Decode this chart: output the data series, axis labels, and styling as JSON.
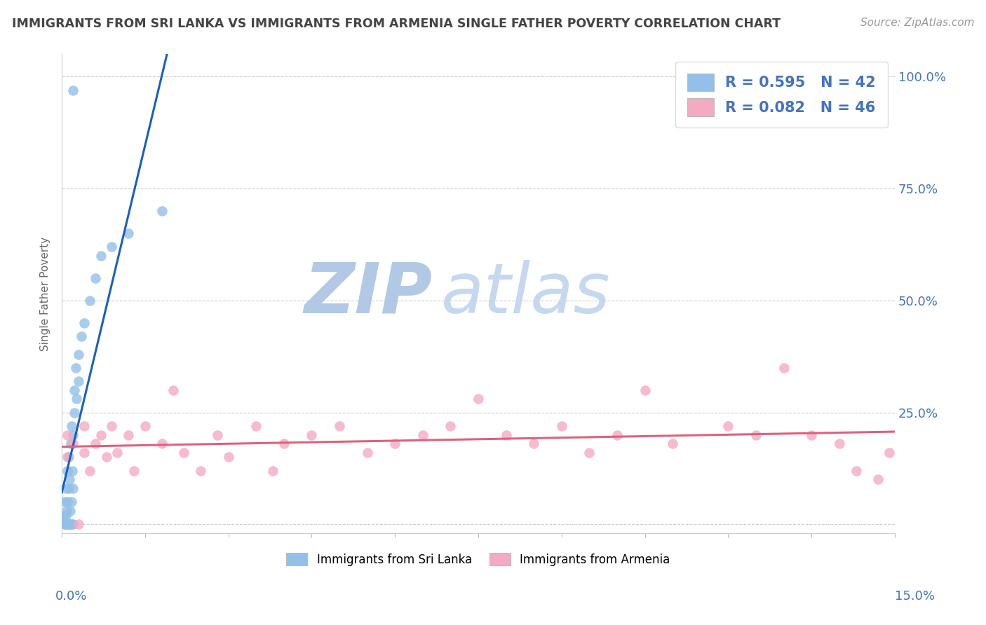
{
  "title": "IMMIGRANTS FROM SRI LANKA VS IMMIGRANTS FROM ARMENIA SINGLE FATHER POVERTY CORRELATION CHART",
  "source": "Source: ZipAtlas.com",
  "ylabel": "Single Father Poverty",
  "xlim": [
    0.0,
    0.15
  ],
  "ylim": [
    -0.02,
    1.05
  ],
  "yticks": [
    0.0,
    0.25,
    0.5,
    0.75,
    1.0
  ],
  "ytick_labels_right": [
    "",
    "25.0%",
    "50.0%",
    "75.0%",
    "100.0%"
  ],
  "xtick_label_left": "0.0%",
  "xtick_label_right": "15.0%",
  "legend1_text": "R = 0.595   N = 42",
  "legend2_text": "R = 0.082   N = 46",
  "color_srilanka": "#92c0e8",
  "color_armenia": "#f4aac0",
  "color_trend1": "#1a5fbd",
  "color_trend2": "#e0607a",
  "color_dash": "#aaccee",
  "color_axis_blue": "#4472c4",
  "color_title": "#444444",
  "color_source": "#999999",
  "color_grid": "#cccccc",
  "bg_color": "#ffffff",
  "label_srilanka": "Immigrants from Sri Lanka",
  "label_armenia": "Immigrants from Armenia",
  "sl_x": [
    0.0003,
    0.0004,
    0.0005,
    0.0005,
    0.0006,
    0.0007,
    0.0007,
    0.0008,
    0.0009,
    0.001,
    0.001,
    0.001,
    0.0012,
    0.0012,
    0.0013,
    0.0013,
    0.0014,
    0.0015,
    0.0015,
    0.0016,
    0.0017,
    0.0018,
    0.0018,
    0.0019,
    0.002,
    0.002,
    0.002,
    0.0022,
    0.0023,
    0.0025,
    0.0026,
    0.003,
    0.003,
    0.0035,
    0.004,
    0.005,
    0.006,
    0.007,
    0.009,
    0.012,
    0.018,
    0.002
  ],
  "sl_y": [
    0.02,
    0.01,
    0.0,
    0.05,
    0.0,
    0.02,
    0.08,
    0.0,
    0.03,
    0.0,
    0.05,
    0.12,
    0.0,
    0.08,
    0.15,
    0.0,
    0.1,
    0.0,
    0.03,
    0.18,
    0.0,
    0.05,
    0.22,
    0.12,
    0.0,
    0.08,
    0.2,
    0.25,
    0.3,
    0.35,
    0.28,
    0.32,
    0.38,
    0.42,
    0.45,
    0.5,
    0.55,
    0.6,
    0.62,
    0.65,
    0.7,
    0.97
  ],
  "arm_x": [
    0.001,
    0.001,
    0.002,
    0.003,
    0.004,
    0.004,
    0.005,
    0.006,
    0.007,
    0.008,
    0.009,
    0.01,
    0.012,
    0.013,
    0.015,
    0.018,
    0.02,
    0.022,
    0.025,
    0.028,
    0.03,
    0.035,
    0.038,
    0.04,
    0.045,
    0.05,
    0.055,
    0.06,
    0.065,
    0.07,
    0.075,
    0.08,
    0.085,
    0.09,
    0.095,
    0.1,
    0.105,
    0.11,
    0.12,
    0.125,
    0.13,
    0.135,
    0.14,
    0.143,
    0.147,
    0.149
  ],
  "arm_y": [
    0.2,
    0.15,
    0.18,
    0.0,
    0.16,
    0.22,
    0.12,
    0.18,
    0.2,
    0.15,
    0.22,
    0.16,
    0.2,
    0.12,
    0.22,
    0.18,
    0.3,
    0.16,
    0.12,
    0.2,
    0.15,
    0.22,
    0.12,
    0.18,
    0.2,
    0.22,
    0.16,
    0.18,
    0.2,
    0.22,
    0.28,
    0.2,
    0.18,
    0.22,
    0.16,
    0.2,
    0.3,
    0.18,
    0.22,
    0.2,
    0.35,
    0.2,
    0.18,
    0.12,
    0.1,
    0.16
  ]
}
